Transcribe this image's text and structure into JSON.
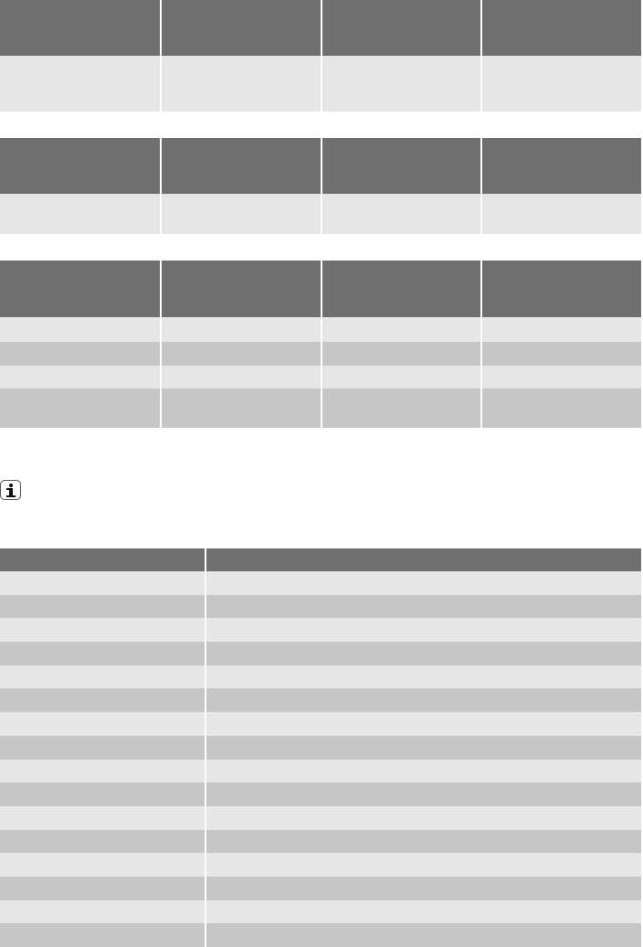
{
  "colors": {
    "header": "#6f6f6f",
    "row_light": "#e6e6e6",
    "row_dark": "#c6c6c6"
  },
  "icons": {
    "info": "info-icon"
  }
}
